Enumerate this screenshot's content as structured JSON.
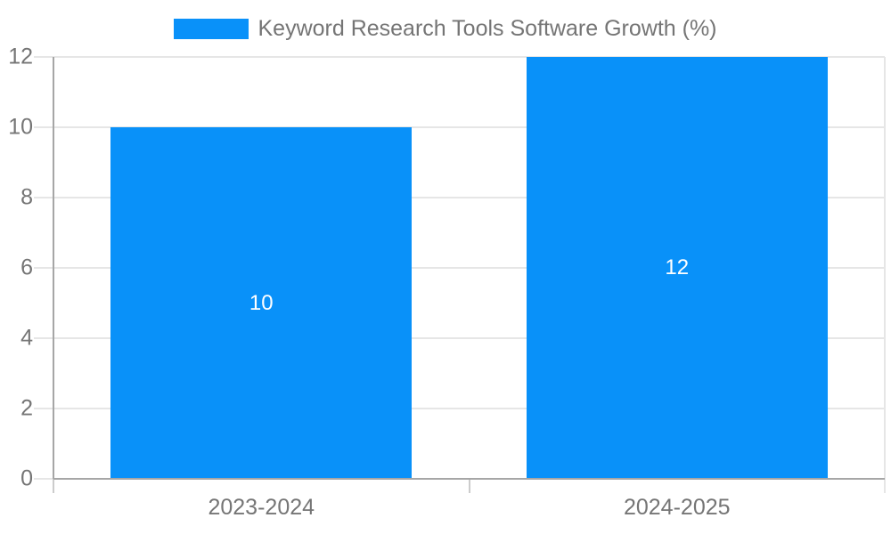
{
  "chart_data": {
    "type": "bar",
    "title": "Keyword Research Tools Software Growth (%)",
    "legend": {
      "position": "top-center",
      "entries": [
        "Keyword Research Tools Software Growth (%)"
      ]
    },
    "categories": [
      "2023-2024",
      "2024-2025"
    ],
    "values": [
      10,
      12
    ],
    "bar_labels": [
      "10",
      "12"
    ],
    "xlabel": "",
    "ylabel": "",
    "ylim": [
      0,
      12
    ],
    "yticks": [
      0,
      2,
      4,
      6,
      8,
      10,
      12
    ],
    "grid": true,
    "colors": {
      "bar": "#0991f9",
      "grid": "#e6e6e6",
      "axis": "#a6a6a6",
      "text": "#757575",
      "bar_label": "#ffffff"
    }
  }
}
